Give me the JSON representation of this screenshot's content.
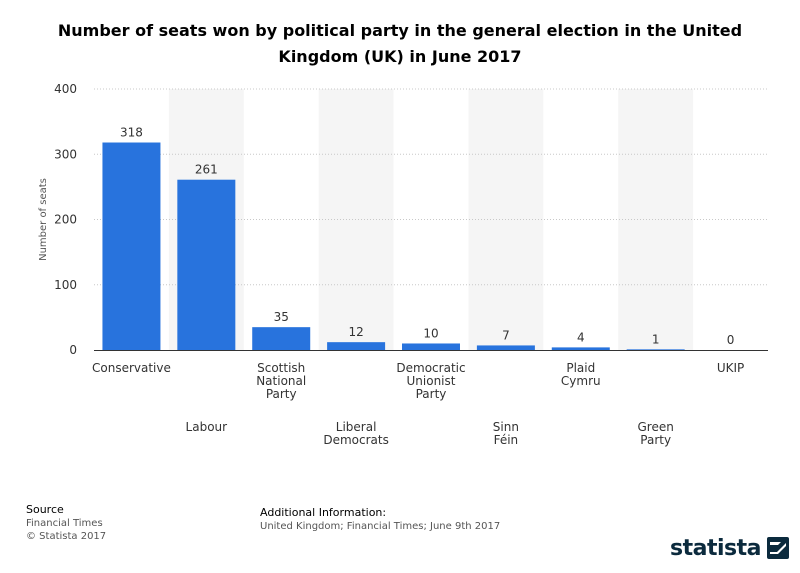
{
  "header": {
    "title": "Number of seats won by political party in the general election in the United Kingdom (UK) in June 2017"
  },
  "chart_data": {
    "type": "bar",
    "categories": [
      [
        "Conservative"
      ],
      [
        "Labour"
      ],
      [
        "Scottish",
        "National",
        "Party"
      ],
      [
        "Liberal",
        "Democrats"
      ],
      [
        "Democratic",
        "Unionist",
        "Party"
      ],
      [
        "Sinn",
        "Féin"
      ],
      [
        "Plaid",
        "Cymru"
      ],
      [
        "Green",
        "Party"
      ],
      [
        "UKIP"
      ]
    ],
    "values": [
      318,
      261,
      35,
      12,
      10,
      7,
      4,
      1,
      0
    ],
    "value_labels": [
      "318",
      "261",
      "35",
      "12",
      "10",
      "7",
      "4",
      "1",
      "0"
    ],
    "ylabel": "Number of seats",
    "ylim": [
      0,
      400
    ],
    "yticks": [
      "0",
      "100",
      "200",
      "300",
      "400"
    ],
    "ytick_values": [
      0,
      100,
      200,
      300,
      400
    ],
    "grid": true,
    "bar_color": "#2873dd",
    "band_color": "#f5f5f5"
  },
  "footer": {
    "source_heading": "Source",
    "source_text": "Financial Times",
    "copyright": "© Statista 2017",
    "info_heading": "Additional Information:",
    "info_text": "United Kingdom; Financial Times; June 9th 2017"
  },
  "brand": {
    "name": "statista",
    "logo_icon": "statista-logo-icon"
  }
}
